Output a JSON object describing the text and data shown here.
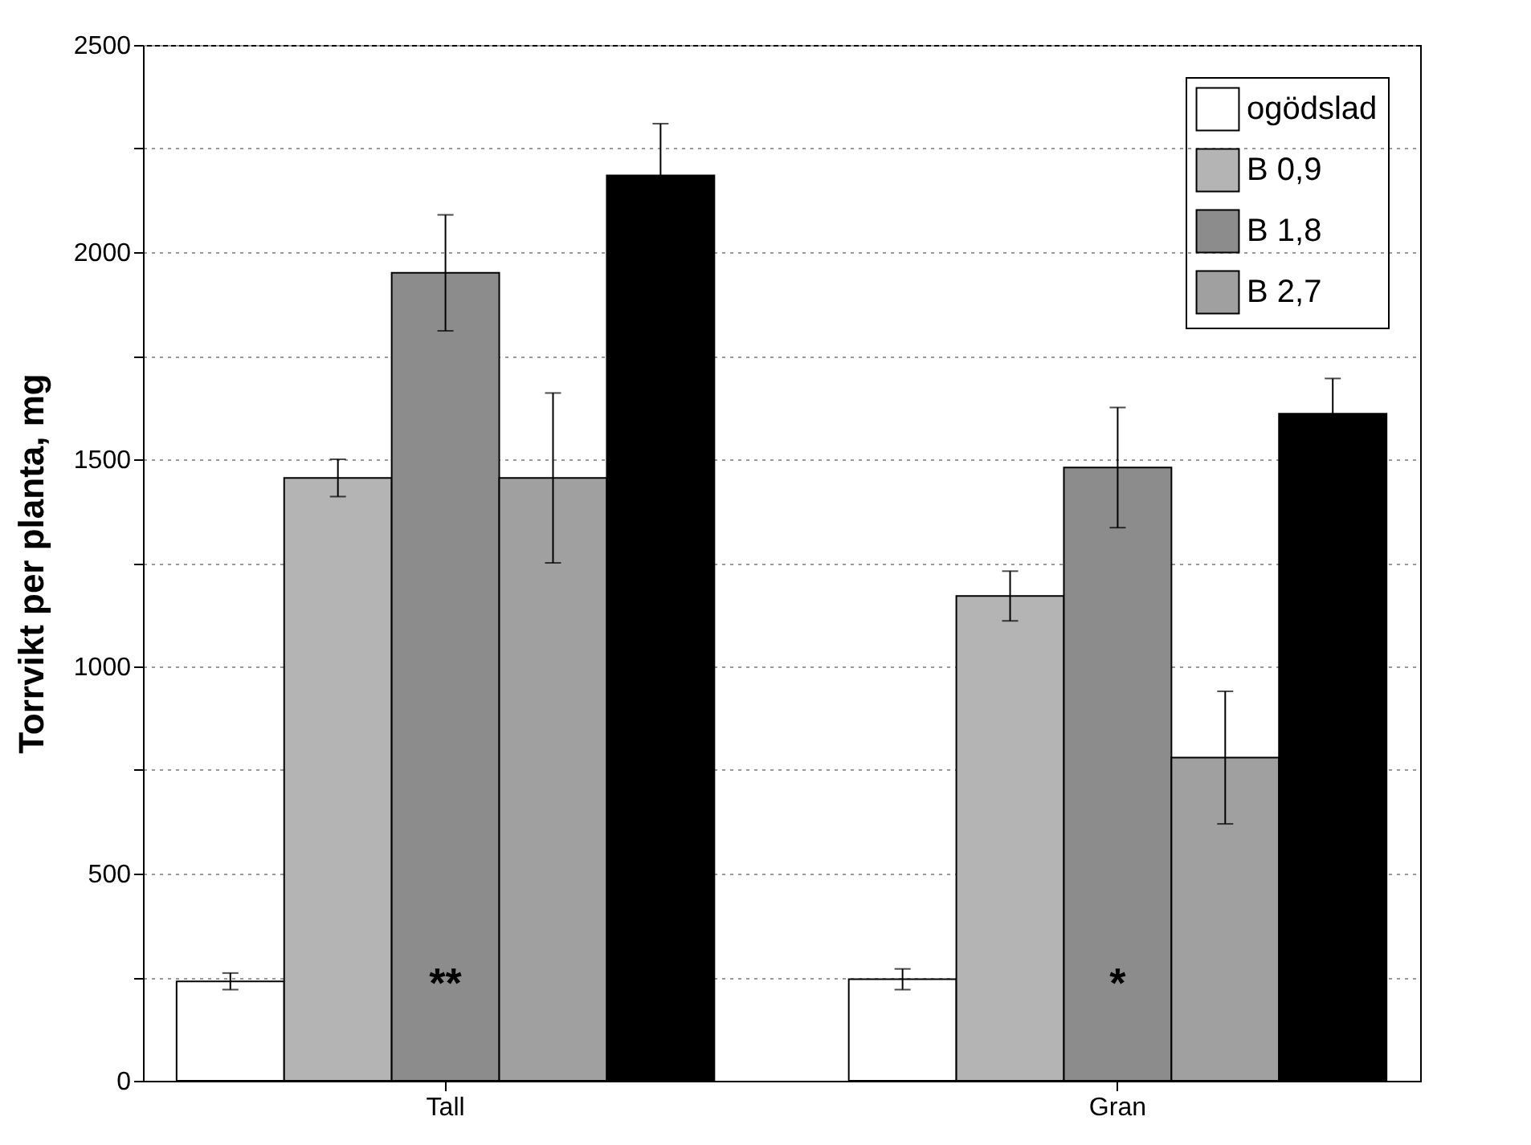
{
  "chart_data": {
    "type": "bar",
    "ylabel": "Torrvikt per planta, mg",
    "categories": [
      "Tall",
      "Gran"
    ],
    "series": [
      {
        "name": "ogödslad",
        "color": "#ffffff",
        "values": [
          240,
          245
        ],
        "errors": [
          20,
          25
        ]
      },
      {
        "name": "B 0,9",
        "color": "#b4b4b4",
        "values": [
          1455,
          1170
        ],
        "errors": [
          45,
          60
        ]
      },
      {
        "name": "B 1,8",
        "color": "#8c8c8c",
        "values": [
          1950,
          1480
        ],
        "errors": [
          140,
          145
        ]
      },
      {
        "name": "B 2,7",
        "color": "#a0a0a0",
        "values": [
          1455,
          780
        ],
        "errors": [
          205,
          160
        ]
      },
      {
        "color": "#000000",
        "values": [
          2185,
          1610
        ],
        "errors": [
          125,
          85
        ]
      }
    ],
    "ylim": [
      0,
      2500
    ],
    "yticks": [
      0,
      {
        "value": 250,
        "label": null
      },
      500,
      {
        "value": 750,
        "label": null
      },
      1000,
      {
        "value": 1250,
        "label": null
      },
      1500,
      {
        "value": 1750,
        "label": null
      },
      2000,
      {
        "value": 2250,
        "label": null
      },
      2500
    ],
    "grid": "y",
    "legend": "top right",
    "annotations": [
      "**",
      "*"
    ]
  }
}
